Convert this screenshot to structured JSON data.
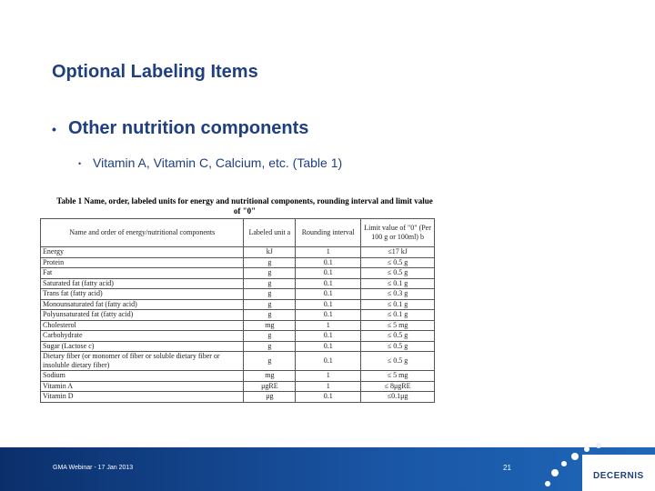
{
  "slide": {
    "title": "Optional Labeling Items",
    "bullet": "Other nutrition components",
    "sub_bullet": "Vitamin A, Vitamin C, Calcium, etc. (Table 1)",
    "table": {
      "caption": "Table 1 Name, order, labeled units for energy and nutritional components, rounding interval and limit value of \"0\"",
      "columns": [
        "Name and order of energy/nutritional components",
        "Labeled unit a",
        "Rounding interval",
        "Limit value of \"0\" (Per 100 g or 100ml) b"
      ],
      "rows": [
        [
          "Energy",
          "kJ",
          "1",
          "≤17 kJ"
        ],
        [
          "Protein",
          "g",
          "0.1",
          "≤ 0.5 g"
        ],
        [
          "Fat",
          "g",
          "0.1",
          "≤ 0.5 g"
        ],
        [
          "Saturated fat (fatty acid)",
          "g",
          "0.1",
          "≤ 0.1 g"
        ],
        [
          "Trans fat (fatty acid)",
          "g",
          "0.1",
          "≤ 0.3 g"
        ],
        [
          "Monounsaturated fat (fatty acid)",
          "g",
          "0.1",
          "≤ 0.1 g"
        ],
        [
          "Polyunsaturated fat (fatty acid)",
          "g",
          "0.1",
          "≤ 0.1 g"
        ],
        [
          "Cholesterol",
          "mg",
          "1",
          "≤ 5 mg"
        ],
        [
          "Carbohydrate",
          "g",
          "0.1",
          "≤ 0.5 g"
        ],
        [
          "Sugar (Lactose c)",
          "g",
          "0.1",
          "≤ 0.5 g"
        ],
        [
          "Dietary fiber (or monomer of fiber or soluble dietary fiber or insoluble dietary fiber)",
          "g",
          "0.1",
          "≤ 0.5 g"
        ],
        [
          "Sodium",
          "mg",
          "1",
          "≤ 5 mg"
        ],
        [
          "Vitamin A",
          "μgRE",
          "1",
          "≤ 8μgRE"
        ],
        [
          "Vitamin D",
          "μg",
          "0.1",
          "≤0.1μg"
        ]
      ]
    },
    "footer": {
      "left": "GMA Webinar - 17 Jan 2013",
      "page_number": "21",
      "logo": "DECERNIS"
    }
  }
}
